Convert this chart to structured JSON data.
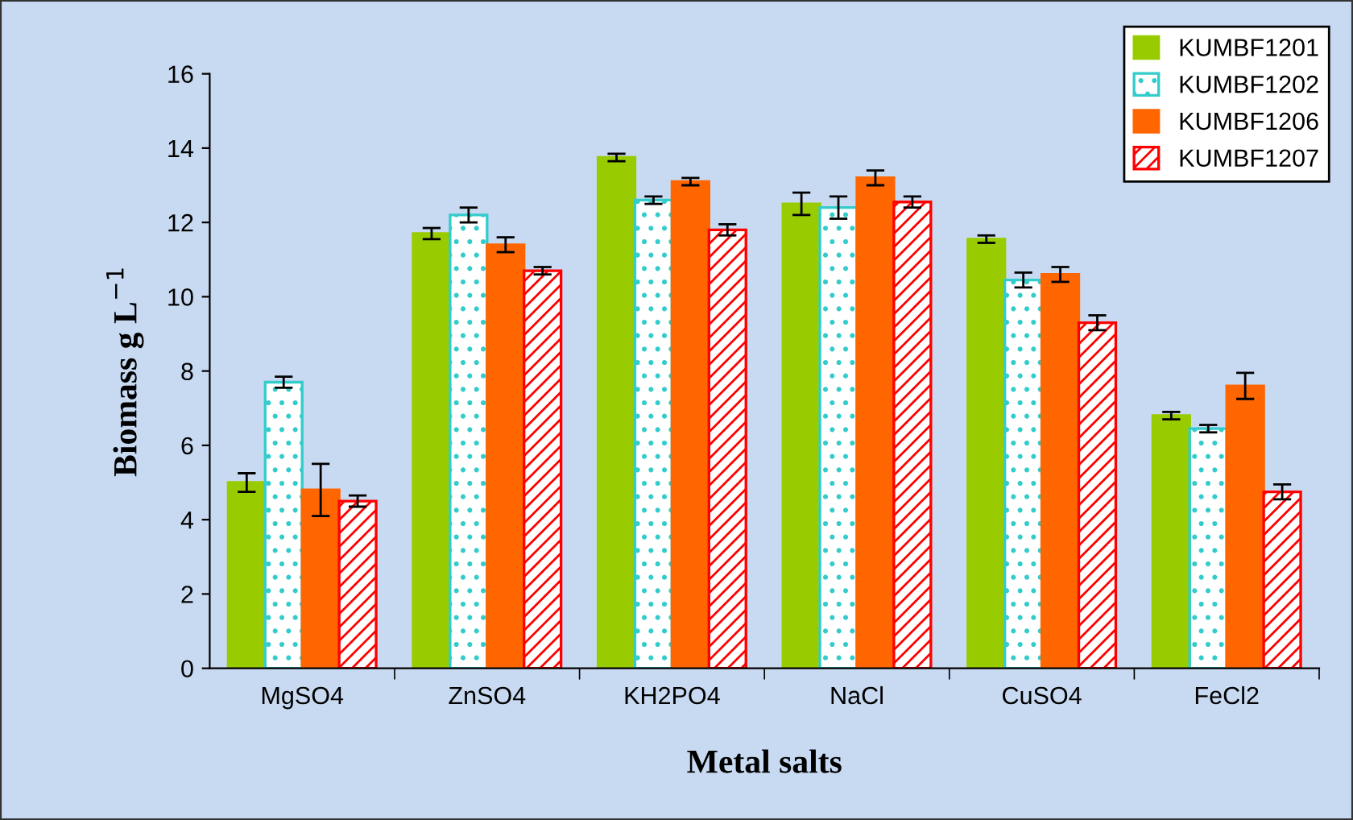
{
  "chart_data": {
    "type": "bar",
    "xlabel": "Metal salts",
    "ylabel": "Biomass g L$^{−1}$",
    "categories": [
      "MgSO4",
      "ZnSO4",
      "KH2PO4",
      "NaCl",
      "CuSO4",
      "FeCl2"
    ],
    "series": [
      {
        "name": "KUMBF1201",
        "color": "#99cc00",
        "values": [
          5.0,
          11.7,
          13.75,
          12.5,
          11.55,
          6.8
        ],
        "errors": [
          0.25,
          0.15,
          0.1,
          0.3,
          0.1,
          0.1
        ]
      },
      {
        "name": "KUMBF1202",
        "color": "#33cccc",
        "values": [
          7.7,
          12.2,
          12.6,
          12.4,
          10.45,
          6.45
        ],
        "errors": [
          0.15,
          0.2,
          0.1,
          0.3,
          0.2,
          0.1
        ]
      },
      {
        "name": "KUMBF1206",
        "color": "#ff6600",
        "values": [
          4.8,
          11.4,
          13.1,
          13.2,
          10.6,
          7.6
        ],
        "errors": [
          0.7,
          0.2,
          0.1,
          0.2,
          0.2,
          0.35
        ]
      },
      {
        "name": "KUMBF1207",
        "color": "#ff0000",
        "values": [
          4.5,
          10.7,
          11.8,
          12.55,
          9.3,
          4.75
        ],
        "errors": [
          0.15,
          0.1,
          0.15,
          0.15,
          0.2,
          0.2
        ]
      }
    ],
    "ylim": [
      0,
      16
    ],
    "yticks": [
      0,
      2,
      4,
      6,
      8,
      10,
      12,
      14,
      16
    ],
    "grid": false,
    "legend": "top right"
  }
}
